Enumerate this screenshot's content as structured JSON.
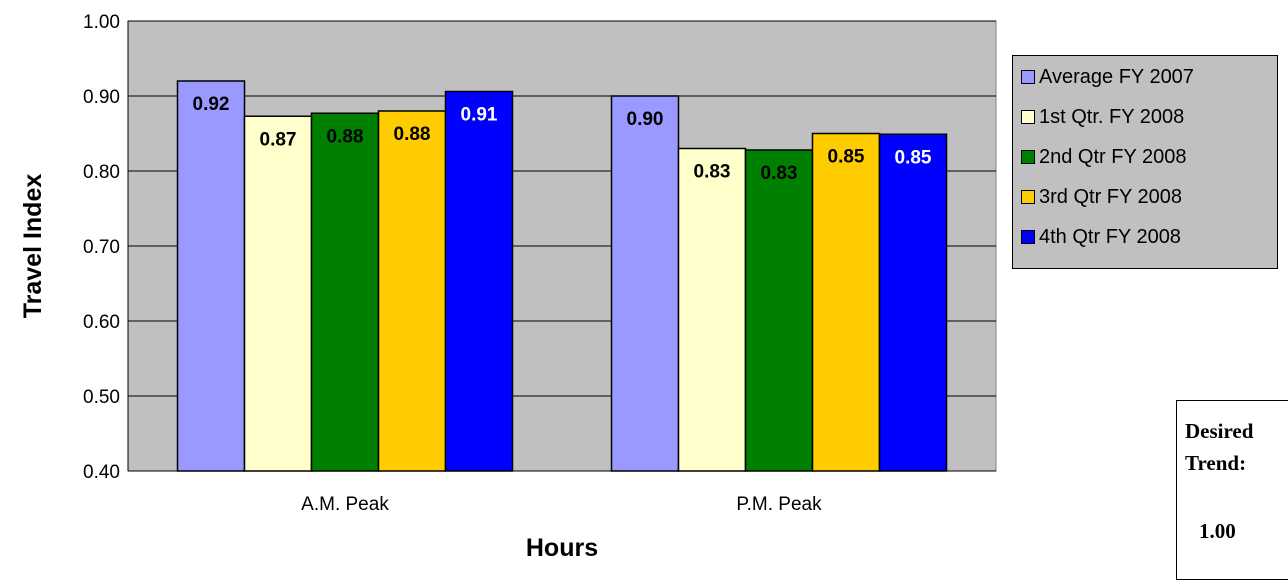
{
  "chart_data": {
    "type": "bar",
    "categories": [
      "A.M. Peak",
      "P.M. Peak"
    ],
    "series": [
      {
        "name": "Average FY 2007",
        "values": [
          0.92,
          0.9
        ],
        "labels": [
          "0.92",
          "0.90"
        ],
        "color": "#9999ff",
        "label_color": "#000000"
      },
      {
        "name": "1st Qtr. FY 2008",
        "values": [
          0.873,
          0.83
        ],
        "labels": [
          "0.87",
          "0.83"
        ],
        "color": "#ffffcc",
        "label_color": "#000000"
      },
      {
        "name": "2nd Qtr FY 2008",
        "values": [
          0.877,
          0.828
        ],
        "labels": [
          "0.88",
          "0.83"
        ],
        "color": "#008000",
        "label_color": "#000000"
      },
      {
        "name": "3rd Qtr FY 2008",
        "values": [
          0.88,
          0.85
        ],
        "labels": [
          "0.88",
          "0.85"
        ],
        "color": "#ffcc00",
        "label_color": "#000000"
      },
      {
        "name": "4th Qtr FY 2008",
        "values": [
          0.906,
          0.849
        ],
        "labels": [
          "0.91",
          "0.85"
        ],
        "color": "#0000ff",
        "label_color": "#ffffff"
      }
    ],
    "ylim": [
      0.4,
      1.0
    ],
    "yticks": [
      "0.40",
      "0.50",
      "0.60",
      "0.70",
      "0.80",
      "0.90",
      "1.00"
    ],
    "ylabel": "Travel Index",
    "xlabel": "Hours",
    "grid": true,
    "plot_background": "#c0c0c0",
    "legend_position": "right"
  },
  "trend_box": {
    "title": "Desired Trend:",
    "value": "1.00"
  }
}
